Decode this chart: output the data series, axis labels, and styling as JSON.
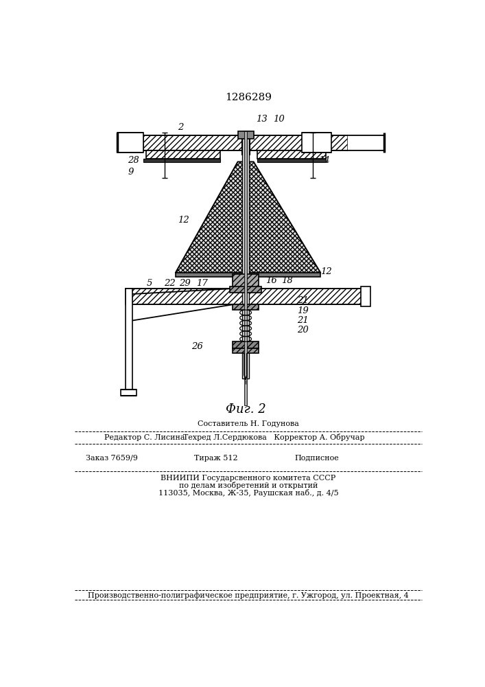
{
  "patent_number": "1286289",
  "figure_label": "Фиг. 2",
  "bg": "#ffffff",
  "footer_line0": "Составитель Н. Годунова",
  "footer_line1a": "Редактор С. Лисина",
  "footer_line1b": "Техред Л.Сердюкова   Корректор А. Обручар",
  "footer_line2a": "Заказ 7659/9",
  "footer_line2b": "Тираж 512",
  "footer_line2c": "Подписное",
  "footer_line3": "ВНИИПИ Государсвенного комитета СССР",
  "footer_line4": "по делам изобретений и открытий",
  "footer_line5": "113035, Москва, Ж-35, Раушская наб., д. 4/5",
  "footer_line6": "Производственно-полиграфическое предприятие, г. Ужгород, ул. Проектная, 4"
}
